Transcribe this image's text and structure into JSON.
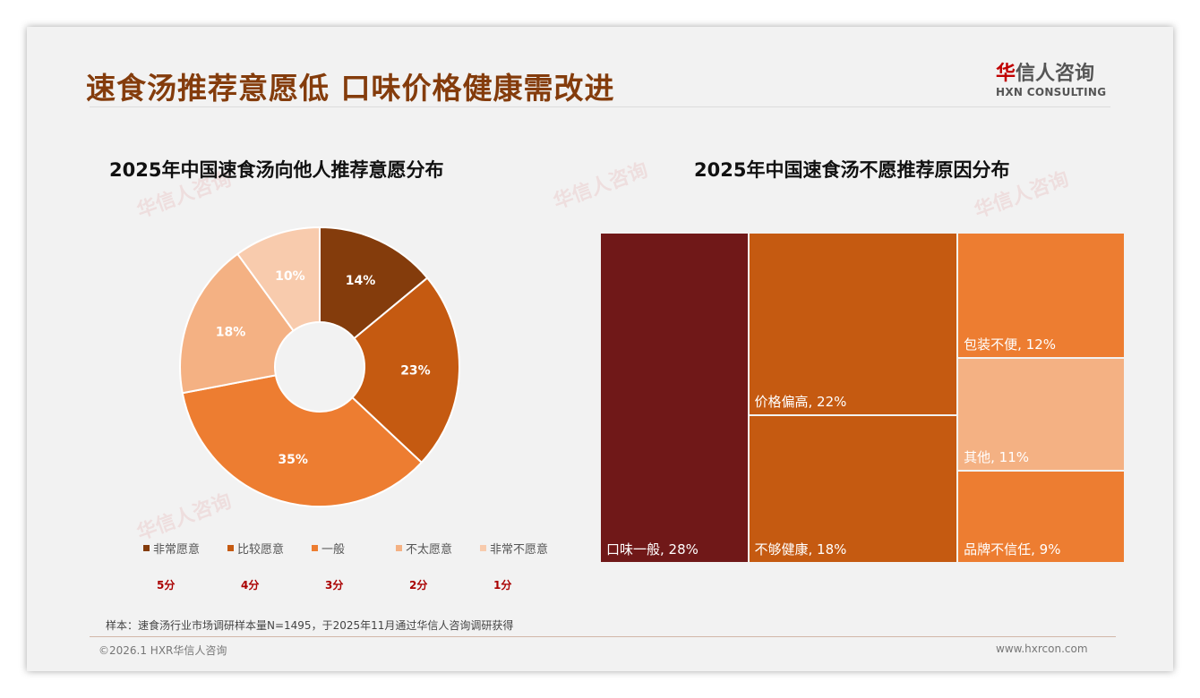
{
  "header": {
    "title": "速食汤推荐意愿低 口味价格健康需改进",
    "logo_cn_mark": "华",
    "logo_cn_rest": "信人咨询",
    "logo_en": "HXN CONSULTING"
  },
  "chart_data": [
    {
      "type": "pie",
      "title": "2025年中国速食汤向他人推荐意愿分布",
      "categories": [
        "非常愿意",
        "比较愿意",
        "一般",
        "不太愿意",
        "非常不愿意"
      ],
      "values": [
        14,
        23,
        35,
        18,
        10
      ],
      "labels": [
        "14%",
        "23%",
        "35%",
        "18%",
        "10%"
      ],
      "scores": [
        "5分",
        "4分",
        "3分",
        "2分",
        "1分"
      ],
      "colors": [
        "#843c0c",
        "#c55a11",
        "#ed7d31",
        "#f4b183",
        "#f8cbad"
      ],
      "legend": "bottom",
      "donut": true
    },
    {
      "type": "treemap",
      "title": "2025年中国速食汤不愿推荐原因分布",
      "categories": [
        "口味一般",
        "价格偏高",
        "不够健康",
        "包装不便",
        "其他",
        "品牌不信任"
      ],
      "values": [
        28,
        22,
        18,
        12,
        11,
        9
      ],
      "labels": [
        "口味一般, 28%",
        "价格偏高, 22%",
        "不够健康, 18%",
        "包装不便, 12%",
        "其他, 11%",
        "品牌不信任, 9%"
      ],
      "colors": [
        "#701818",
        "#c55a11",
        "#c55a11",
        "#ed7d31",
        "#f4b183",
        "#ed7d31"
      ]
    }
  ],
  "footer": {
    "note": "样本：速食汤行业市场调研样本量N=1495，于2025年11月通过华信人咨询调研获得",
    "copyright": "©2026.1 HXR华信人咨询",
    "url": "www.hxrcon.com"
  }
}
